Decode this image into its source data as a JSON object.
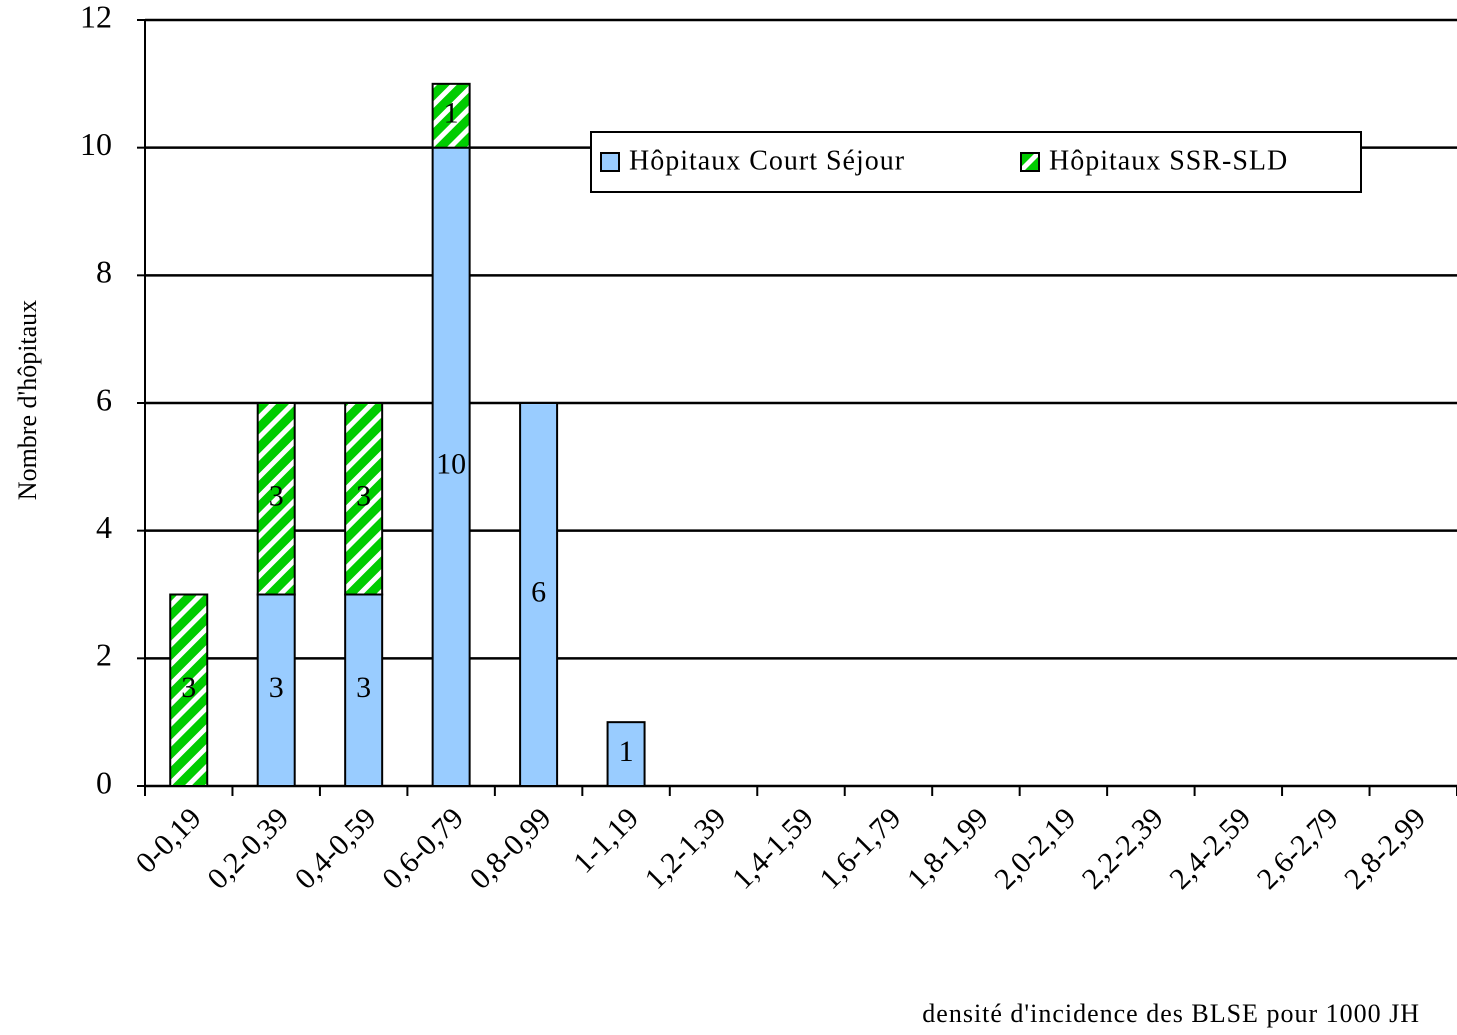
{
  "chart_data": {
    "type": "stacked_bar",
    "x_label": "densité d'incidence des BLSE pour 1000 JH",
    "y_label": "Nombre d'hôpitaux",
    "categories": [
      "0-0,19",
      "0,2-0,39",
      "0,4-0,59",
      "0,6-0,79",
      "0,8-0,99",
      "1-1,19",
      "1,2-1,39",
      "1,4-1,59",
      "1,6-1,79",
      "1,8-1,99",
      "2,0-2,19",
      "2,2-2,39",
      "2,4-2,59",
      "2,6-2,79",
      "2,8-2,99"
    ],
    "series": [
      {
        "name": "Hôpitaux Court Séjour",
        "color": "#99ccff",
        "values": [
          0,
          3,
          3,
          10,
          6,
          1,
          0,
          0,
          0,
          0,
          0,
          0,
          0,
          0,
          0
        ]
      },
      {
        "name": "Hôpitaux SSR-SLD",
        "color": "#00cc00",
        "hatch": true,
        "values": [
          3,
          3,
          3,
          1,
          0,
          0,
          0,
          0,
          0,
          0,
          0,
          0,
          0,
          0,
          0
        ]
      }
    ],
    "ylim": [
      0,
      12
    ],
    "yticks": [
      0,
      2,
      4,
      6,
      8,
      10,
      12
    ],
    "grid": true,
    "legend": "top-right"
  }
}
